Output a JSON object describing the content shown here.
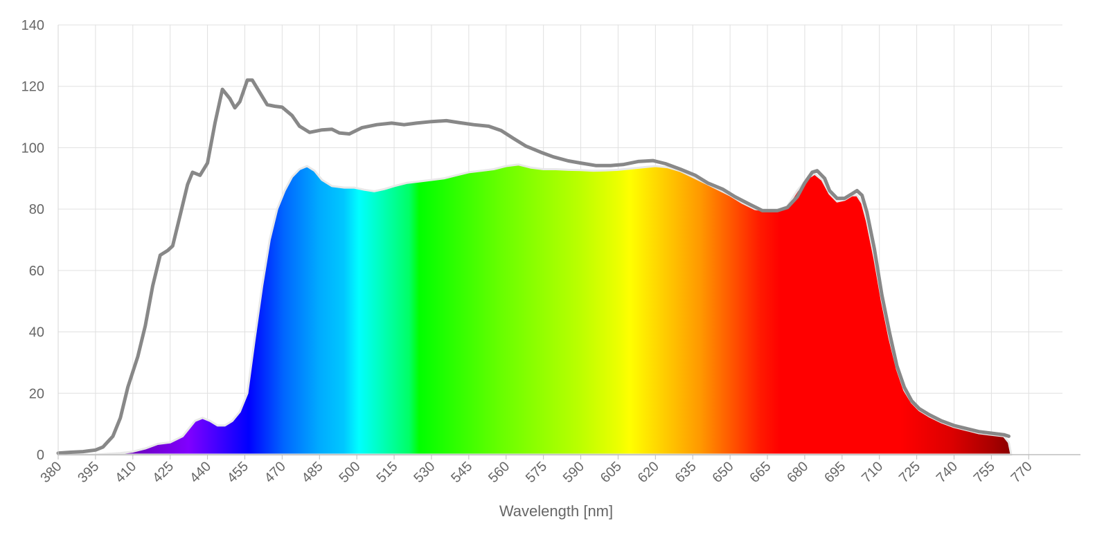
{
  "chart_data": {
    "type": "area",
    "title": "",
    "xlabel": "Wavelength [nm]",
    "ylabel": "",
    "xlim": [
      380,
      783
    ],
    "ylim": [
      0,
      140
    ],
    "grid": true,
    "legend": "none",
    "x_ticks": [
      380,
      395,
      410,
      425,
      440,
      455,
      470,
      485,
      500,
      515,
      530,
      545,
      560,
      575,
      590,
      605,
      620,
      635,
      650,
      665,
      680,
      695,
      710,
      725,
      740,
      755,
      770
    ],
    "x_tick_labels": [
      "380",
      "395",
      "410",
      "425",
      "440",
      "455",
      "470",
      "485",
      "500",
      "515",
      "530",
      "545",
      "560",
      "575",
      "590",
      "605",
      "620",
      "635",
      "650",
      "665",
      "680",
      "695",
      "710",
      "725",
      "740",
      "755",
      "770"
    ],
    "y_ticks": [
      0,
      20,
      40,
      60,
      80,
      100,
      120,
      140
    ],
    "y_tick_labels": [
      "0",
      "20",
      "40",
      "60",
      "80",
      "100",
      "120",
      "140"
    ],
    "series": [
      {
        "style": "line",
        "color": "#888888",
        "points": [
          [
            380,
            0.5
          ],
          [
            385,
            0.8
          ],
          [
            390,
            1
          ],
          [
            395,
            1.5
          ],
          [
            398,
            2.5
          ],
          [
            402,
            6
          ],
          [
            405,
            12
          ],
          [
            408,
            22
          ],
          [
            412,
            32
          ],
          [
            415,
            42
          ],
          [
            418,
            55
          ],
          [
            421,
            65
          ],
          [
            424,
            66.5
          ],
          [
            426,
            68
          ],
          [
            429,
            78
          ],
          [
            432,
            88
          ],
          [
            434,
            92
          ],
          [
            437,
            91
          ],
          [
            440,
            95
          ],
          [
            443,
            108
          ],
          [
            446,
            119
          ],
          [
            449,
            116
          ],
          [
            451,
            113
          ],
          [
            453,
            115
          ],
          [
            456,
            122
          ],
          [
            458,
            122
          ],
          [
            461,
            118
          ],
          [
            464,
            114
          ],
          [
            467,
            113.5
          ],
          [
            470,
            113.2
          ],
          [
            474,
            110.5
          ],
          [
            477,
            107
          ],
          [
            481,
            105
          ],
          [
            486,
            105.8
          ],
          [
            490,
            106
          ],
          [
            493,
            104.8
          ],
          [
            497,
            104.5
          ],
          [
            502,
            106.5
          ],
          [
            508,
            107.5
          ],
          [
            514,
            108
          ],
          [
            519,
            107.5
          ],
          [
            524,
            108
          ],
          [
            530,
            108.5
          ],
          [
            536,
            108.8
          ],
          [
            541,
            108.2
          ],
          [
            547,
            107.5
          ],
          [
            553,
            107
          ],
          [
            558,
            105.6
          ],
          [
            563,
            103
          ],
          [
            568,
            100.5
          ],
          [
            574,
            98.5
          ],
          [
            579,
            97
          ],
          [
            585,
            95.7
          ],
          [
            590,
            95
          ],
          [
            596,
            94.2
          ],
          [
            602,
            94.2
          ],
          [
            607,
            94.5
          ],
          [
            613,
            95.5
          ],
          [
            619,
            95.8
          ],
          [
            624,
            94.8
          ],
          [
            630,
            93
          ],
          [
            636,
            91
          ],
          [
            641,
            88.5
          ],
          [
            647,
            86.5
          ],
          [
            652,
            84
          ],
          [
            658,
            81.5
          ],
          [
            663,
            79.5
          ],
          [
            669,
            79.5
          ],
          [
            673,
            80.5
          ],
          [
            677,
            84
          ],
          [
            680,
            88.5
          ],
          [
            683,
            92
          ],
          [
            685,
            92.5
          ],
          [
            688,
            90
          ],
          [
            690,
            86
          ],
          [
            693,
            83.5
          ],
          [
            696,
            83.5
          ],
          [
            699,
            85
          ],
          [
            701,
            86
          ],
          [
            703,
            84.5
          ],
          [
            705,
            79
          ],
          [
            708,
            67
          ],
          [
            711,
            52
          ],
          [
            714,
            40
          ],
          [
            717,
            29
          ],
          [
            720,
            22
          ],
          [
            723,
            17.5
          ],
          [
            726,
            15
          ],
          [
            730,
            13
          ],
          [
            735,
            11
          ],
          [
            740,
            9.5
          ],
          [
            745,
            8.5
          ],
          [
            750,
            7.5
          ],
          [
            755,
            7
          ],
          [
            760,
            6.5
          ],
          [
            762,
            6
          ]
        ]
      },
      {
        "style": "spectrum-area",
        "color": "#e8e8e8",
        "points": [
          [
            380,
            0
          ],
          [
            395,
            0
          ],
          [
            400,
            0.3
          ],
          [
            405,
            0.5
          ],
          [
            410,
            1
          ],
          [
            415,
            2
          ],
          [
            420,
            3.5
          ],
          [
            425,
            4
          ],
          [
            430,
            6
          ],
          [
            435,
            11
          ],
          [
            438,
            12
          ],
          [
            441,
            11
          ],
          [
            444,
            9.5
          ],
          [
            447,
            9.5
          ],
          [
            450,
            11
          ],
          [
            453,
            14
          ],
          [
            456,
            20
          ],
          [
            459,
            38
          ],
          [
            462,
            55
          ],
          [
            465,
            70
          ],
          [
            468,
            80
          ],
          [
            471,
            86
          ],
          [
            474,
            90.5
          ],
          [
            477,
            93
          ],
          [
            480,
            94
          ],
          [
            483,
            92.5
          ],
          [
            486,
            89.5
          ],
          [
            490,
            87.5
          ],
          [
            495,
            87
          ],
          [
            499,
            87
          ],
          [
            503,
            86.3
          ],
          [
            507,
            85.8
          ],
          [
            511,
            86.5
          ],
          [
            515,
            87.5
          ],
          [
            520,
            88.5
          ],
          [
            525,
            89
          ],
          [
            530,
            89.5
          ],
          [
            535,
            90
          ],
          [
            540,
            91
          ],
          [
            545,
            92
          ],
          [
            550,
            92.5
          ],
          [
            555,
            93
          ],
          [
            560,
            94
          ],
          [
            565,
            94.5
          ],
          [
            570,
            93.5
          ],
          [
            575,
            93
          ],
          [
            580,
            93
          ],
          [
            585,
            92.8
          ],
          [
            590,
            92.7
          ],
          [
            595,
            92.5
          ],
          [
            600,
            92.6
          ],
          [
            605,
            92.8
          ],
          [
            610,
            93.2
          ],
          [
            615,
            93.6
          ],
          [
            620,
            94
          ],
          [
            625,
            93.6
          ],
          [
            630,
            92.4
          ],
          [
            635,
            90.5
          ],
          [
            640,
            88.5
          ],
          [
            645,
            86.5
          ],
          [
            650,
            84.5
          ],
          [
            655,
            82
          ],
          [
            660,
            80
          ],
          [
            665,
            79.5
          ],
          [
            669,
            79.6
          ],
          [
            673,
            81
          ],
          [
            677,
            86
          ],
          [
            681,
            90
          ],
          [
            684,
            91.5
          ],
          [
            687,
            89.5
          ],
          [
            690,
            85
          ],
          [
            693,
            82.5
          ],
          [
            696,
            83
          ],
          [
            699,
            84.5
          ],
          [
            701,
            84.5
          ],
          [
            703,
            82
          ],
          [
            705,
            76
          ],
          [
            708,
            64
          ],
          [
            711,
            50
          ],
          [
            714,
            38
          ],
          [
            717,
            28
          ],
          [
            720,
            21
          ],
          [
            723,
            17
          ],
          [
            726,
            14.5
          ],
          [
            730,
            12.5
          ],
          [
            735,
            10.5
          ],
          [
            740,
            9
          ],
          [
            745,
            8
          ],
          [
            750,
            7
          ],
          [
            755,
            6.5
          ],
          [
            760,
            6
          ],
          [
            762,
            4
          ],
          [
            763,
            0
          ]
        ]
      }
    ]
  }
}
